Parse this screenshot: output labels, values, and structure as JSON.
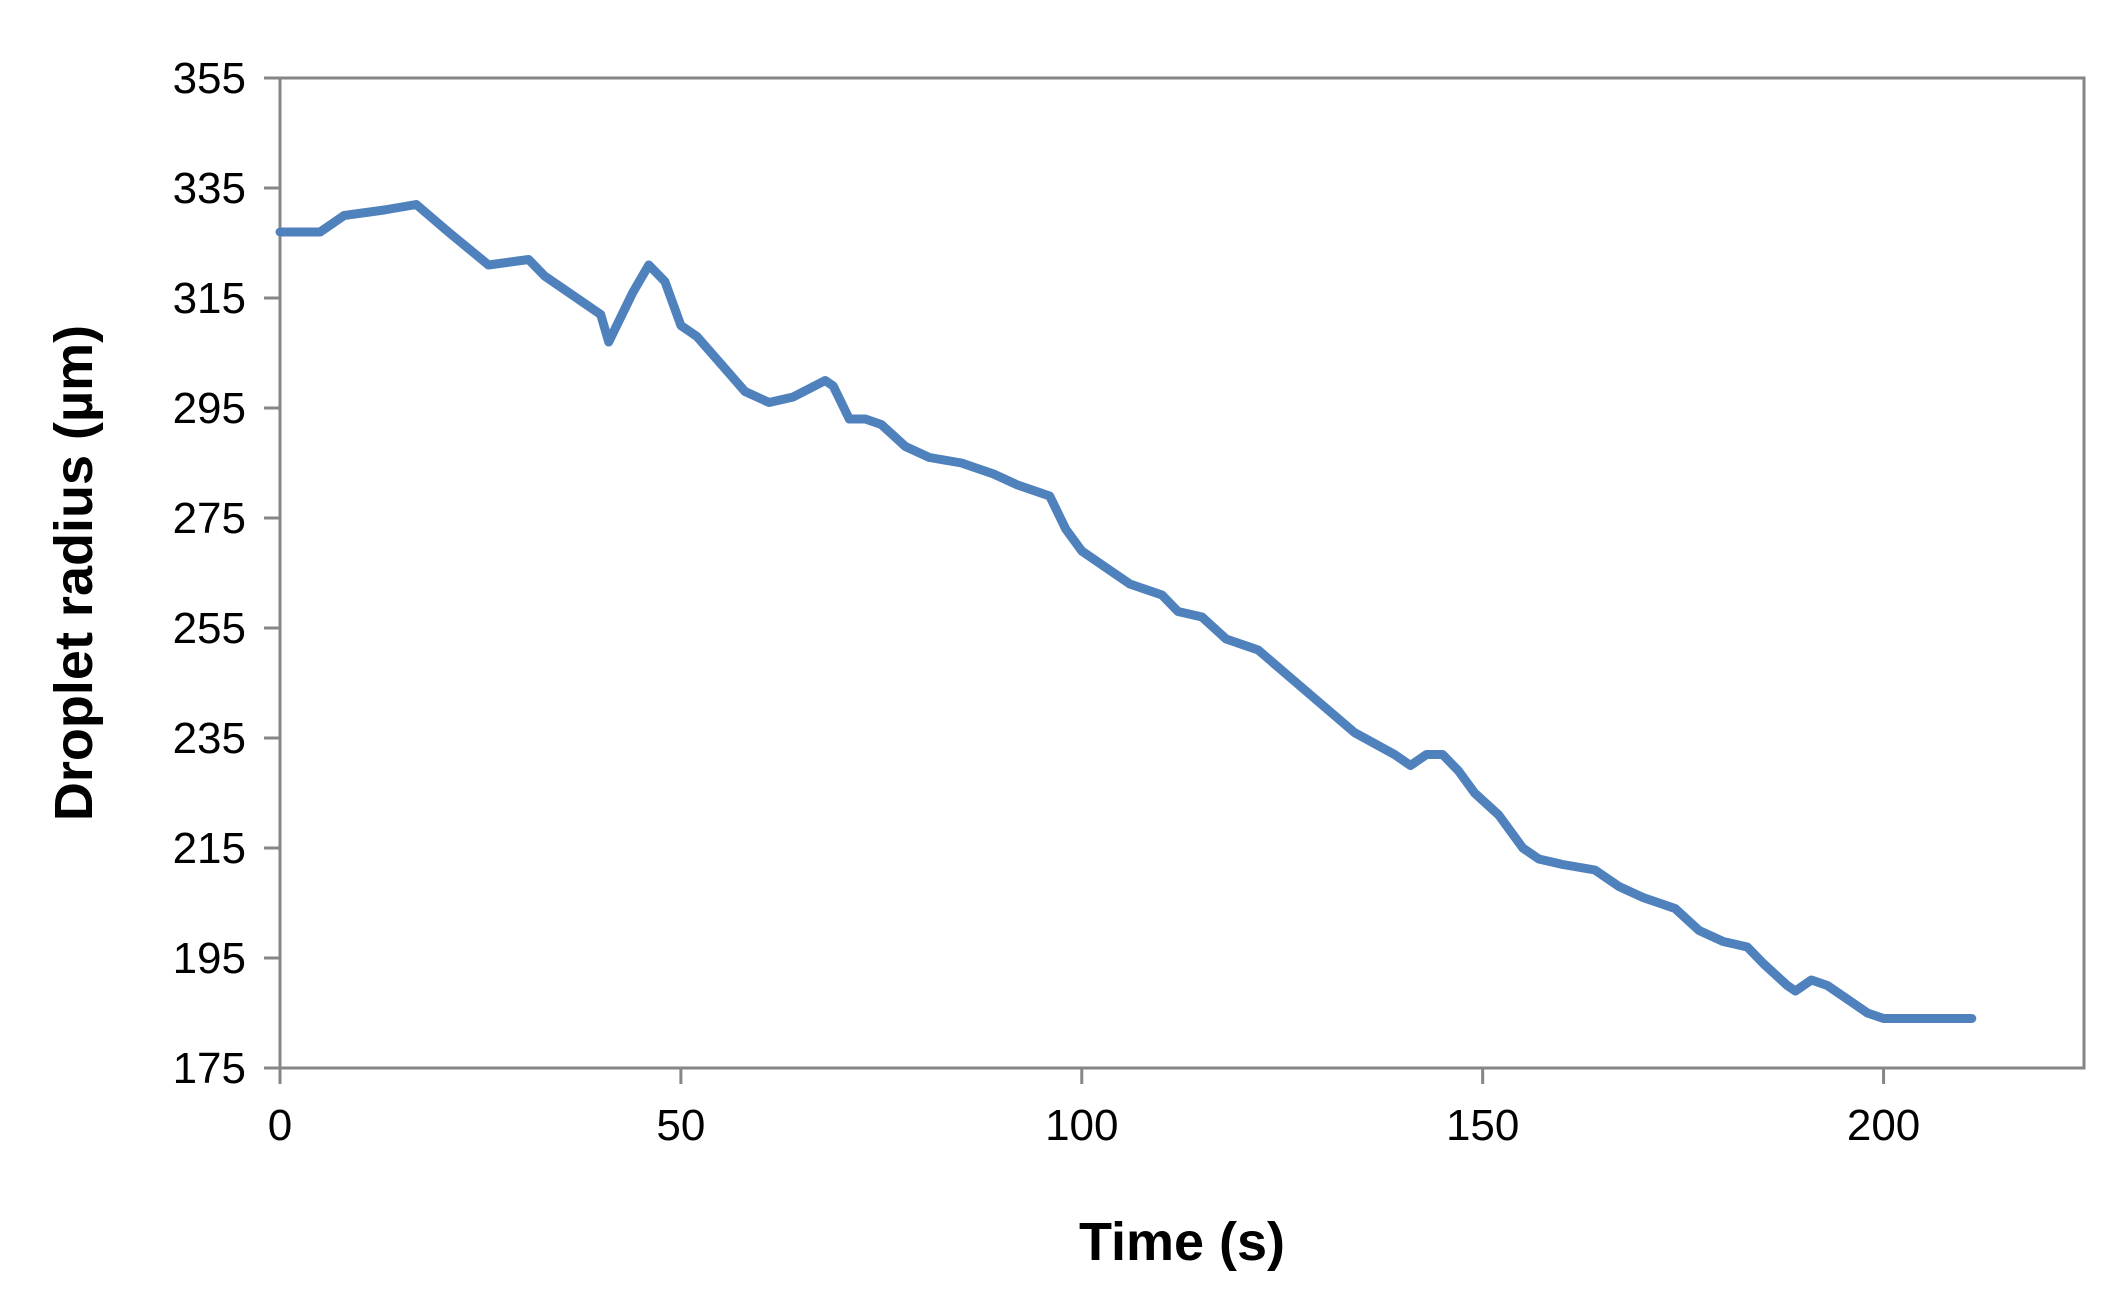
{
  "chart_data": {
    "type": "line",
    "xlabel": "Time (s)",
    "ylabel": "Droplet radius (µm)",
    "xlim": [
      0,
      225
    ],
    "ylim": [
      175,
      355
    ],
    "xticks": [
      0,
      50,
      100,
      150,
      200
    ],
    "yticks": [
      175,
      195,
      215,
      235,
      255,
      275,
      295,
      315,
      335,
      355
    ],
    "grid": false,
    "legend": "none",
    "series": [
      {
        "color": "#4F81BD",
        "x": [
          0,
          5,
          8,
          13,
          17,
          21,
          26,
          31,
          33,
          37,
          40,
          41,
          42,
          44,
          46,
          48,
          50,
          52,
          55,
          58,
          61,
          64,
          68,
          69,
          71,
          73,
          75,
          78,
          81,
          85,
          89,
          92,
          96,
          98,
          100,
          103,
          106,
          108,
          110,
          112,
          115,
          118,
          122,
          126,
          130,
          134,
          139,
          141,
          143,
          145,
          147,
          149,
          152,
          155,
          157,
          160,
          164,
          167,
          170,
          174,
          177,
          180,
          183,
          185,
          188,
          189,
          191,
          193,
          196,
          198,
          200,
          202,
          205,
          211
        ],
        "y": [
          327,
          327,
          330,
          331,
          332,
          327,
          321,
          322,
          319,
          315,
          312,
          307,
          310,
          316,
          321,
          318,
          310,
          308,
          303,
          298,
          296,
          297,
          300,
          299,
          293,
          293,
          292,
          288,
          286,
          285,
          283,
          281,
          279,
          273,
          269,
          266,
          263,
          262,
          261,
          258,
          257,
          253,
          251,
          246,
          241,
          236,
          232,
          230,
          232,
          232,
          229,
          225,
          221,
          215,
          213,
          212,
          211,
          208,
          206,
          204,
          200,
          198,
          197,
          194,
          190,
          189,
          191,
          190,
          187,
          185,
          184,
          184,
          184,
          184
        ]
      }
    ]
  }
}
